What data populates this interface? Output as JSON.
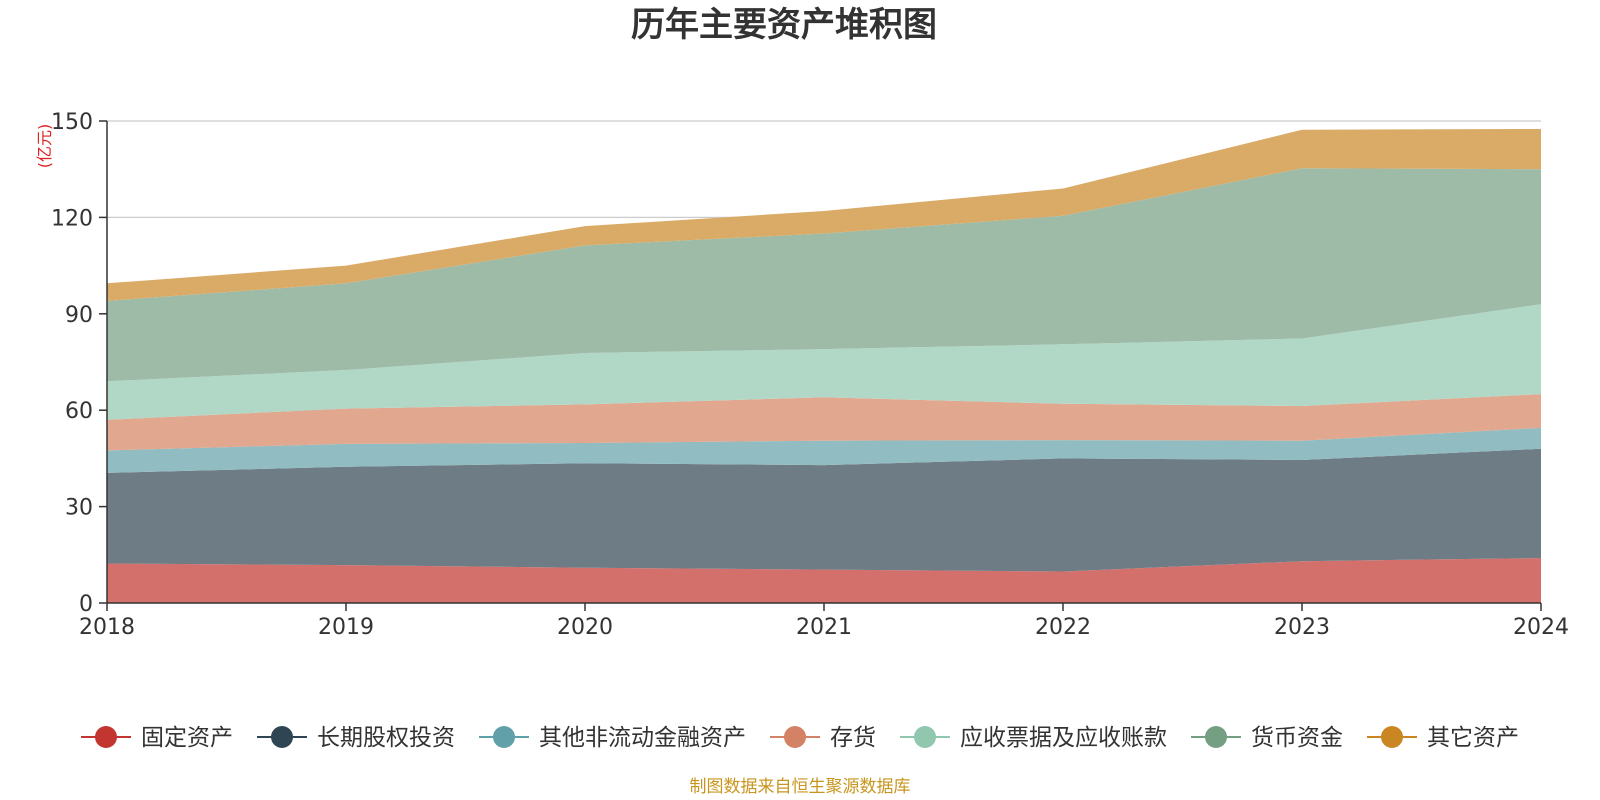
{
  "chart_data": {
    "type": "area",
    "stacked": true,
    "title": "历年主要资产堆积图",
    "unit_label": "(亿元)",
    "x": [
      "2018",
      "2019",
      "2020",
      "2021",
      "2022",
      "2023",
      "2024"
    ],
    "ylim": [
      0,
      150
    ],
    "yticks": [
      0,
      30,
      60,
      90,
      120,
      150
    ],
    "grid": true,
    "legend_position": "bottom",
    "series": [
      {
        "name": "固定资产",
        "color": "#c23531",
        "area_color": "#d4706c",
        "values": [
          12.3,
          11.8,
          11.0,
          10.4,
          9.8,
          13.0,
          14.0
        ]
      },
      {
        "name": "长期股权投资",
        "color": "#2f4554",
        "area_color": "#6e7c86",
        "values": [
          28.2,
          30.6,
          32.5,
          32.5,
          35.2,
          31.5,
          34.0
        ]
      },
      {
        "name": "其他非流动金融资产",
        "color": "#61a0a8",
        "area_color": "#91bcc1",
        "values": [
          7.0,
          7.1,
          6.3,
          7.6,
          5.7,
          6.0,
          6.5
        ]
      },
      {
        "name": "存货",
        "color": "#d48265",
        "area_color": "#e1a78f",
        "values": [
          9.5,
          11.0,
          12.0,
          13.5,
          11.3,
          10.8,
          10.5
        ]
      },
      {
        "name": "应收票据及应收账款",
        "color": "#91c7ae",
        "area_color": "#b1d8c6",
        "values": [
          12.0,
          12.0,
          16.0,
          15.0,
          18.5,
          21.0,
          28.0
        ]
      },
      {
        "name": "货币资金",
        "color": "#749f83",
        "area_color": "#9ebba8",
        "values": [
          25.0,
          27.0,
          33.5,
          36.0,
          40.0,
          53.0,
          42.0
        ]
      },
      {
        "name": "其它资产",
        "color": "#ca8622",
        "area_color": "#d9ab66",
        "values": [
          5.5,
          5.5,
          6.0,
          7.0,
          8.5,
          12.0,
          12.5
        ]
      }
    ]
  },
  "footer": {
    "source": "制图数据来自恒生聚源数据库"
  }
}
